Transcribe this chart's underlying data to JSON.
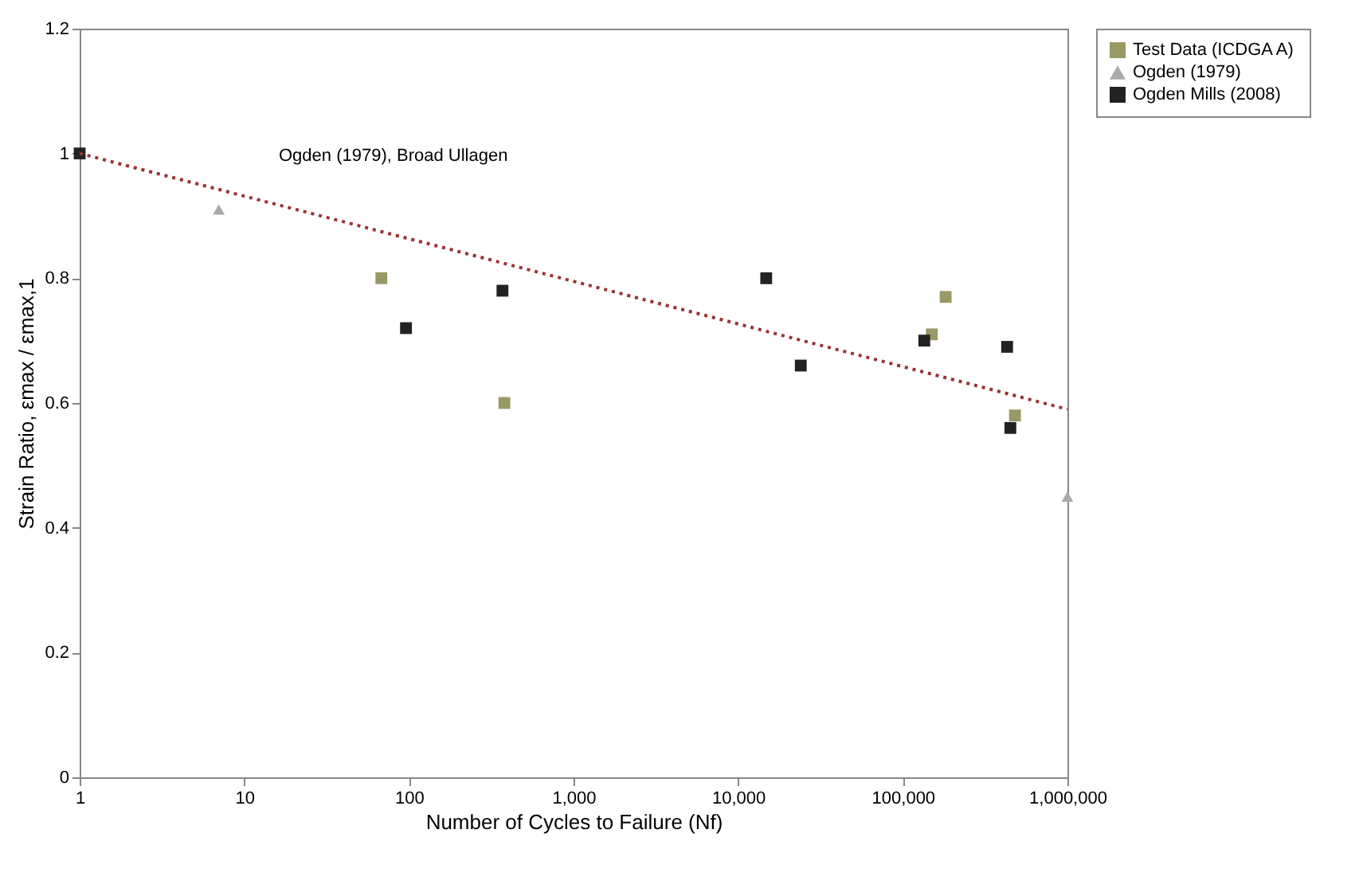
{
  "chart_data": {
    "type": "scatter",
    "xlabel": "Number of Cycles to Failure (Nf)",
    "ylabel": "Strain Ratio, εmax / εmax,1",
    "log": "x",
    "xlim": [
      1,
      1000000
    ],
    "xticks": [
      {
        "value": 1,
        "label": "1"
      },
      {
        "value": 10,
        "label": "10"
      },
      {
        "value": 100,
        "label": "100"
      },
      {
        "value": 1000,
        "label": "1,000"
      },
      {
        "value": 10000,
        "label": "10,000"
      },
      {
        "value": 100000,
        "label": "100,000"
      },
      {
        "value": 1000000,
        "label": "1,000,000"
      }
    ],
    "ylim": [
      0,
      1.2
    ],
    "yticks": [
      0,
      0.2,
      0.4,
      0.6,
      0.8,
      1,
      1.2
    ],
    "grid": false,
    "legend": "right",
    "annotations": [
      "Ogden (1979), Broad Ullagen"
    ],
    "series": [
      {
        "name": "Test Data (ICDGA A)",
        "color": "#999966",
        "marker": "square",
        "x": [
          68,
          380,
          182000,
          480000,
          150000
        ],
        "values": [
          0.8,
          0.6,
          0.77,
          0.58,
          0.71
        ]
      },
      {
        "name": "Ogden (1979)",
        "color": "#aaaaaa",
        "marker": "triangle",
        "x": [
          7,
          1000000
        ],
        "values": [
          0.91,
          0.45
        ]
      },
      {
        "name": "Ogden Mills (2008)",
        "color": "#222222",
        "marker": "square",
        "x": [
          1,
          96,
          370,
          14800,
          24000,
          135000,
          430000,
          450000
        ],
        "values": [
          1.0,
          0.72,
          0.78,
          0.8,
          0.66,
          0.7,
          0.69,
          0.56
        ]
      },
      {
        "type": "line",
        "color": "#993333",
        "line_style": "dotted",
        "x": [
          1,
          1000000
        ],
        "values": [
          1.0,
          0.59
        ]
      }
    ]
  }
}
